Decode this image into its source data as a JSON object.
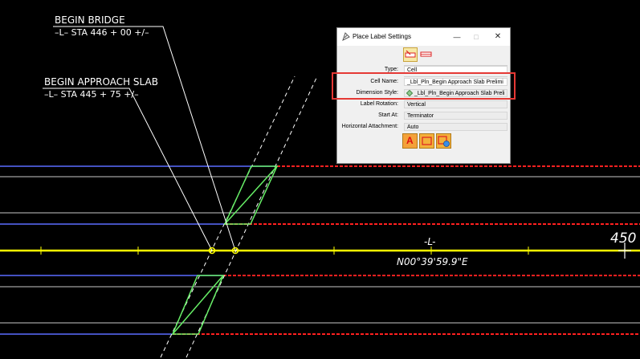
{
  "drawing": {
    "label_bridge": {
      "line1": "BEGIN  BRIDGE",
      "line2": "–L–  STA  446 + 00   +/–"
    },
    "label_approach": {
      "line1": "BEGIN  APPROACH  SLAB",
      "line2": "–L–  STA  445 + 75   +/–"
    },
    "alignment_name": "-L-",
    "bearing": "N00°39'59.9\"E",
    "station_number": "450",
    "colors": {
      "background": "#000000",
      "centerline": "#ffff00",
      "lane_blue": "#5a6cff",
      "edge_white": "#c8c8c8",
      "dashed_red": "#ff2020",
      "slab_green": "#66ee66"
    }
  },
  "dialog": {
    "title": "Place Label Settings",
    "title_icon": "label-tool-icon",
    "window_controls": {
      "minimize": "—",
      "maximize": "□",
      "close": "✕"
    },
    "toolbar_icons": [
      "place-label-icon",
      "label-alt-icon"
    ],
    "fields": {
      "type": {
        "label": "Type:",
        "value": "Cell"
      },
      "cell_name": {
        "label": "Cell Name:",
        "value": "_Lbl_Pln_Begin Approach Slab Prelimi"
      },
      "dimension_style": {
        "label": "Dimension Style:",
        "value": "_Lbl_Pln_Begin Approach Slab Preli"
      },
      "label_rotation": {
        "label": "Label Rotation:",
        "value": "Vertical"
      },
      "start_at": {
        "label": "Start At:",
        "value": "Terminator"
      },
      "horizontal_attachment": {
        "label": "Horizontal Attachment:",
        "value": "Auto"
      }
    },
    "bottom_icons": [
      "text-a-icon",
      "frame-icon",
      "frame-globe-icon"
    ],
    "highlight_color": "#e53935"
  }
}
